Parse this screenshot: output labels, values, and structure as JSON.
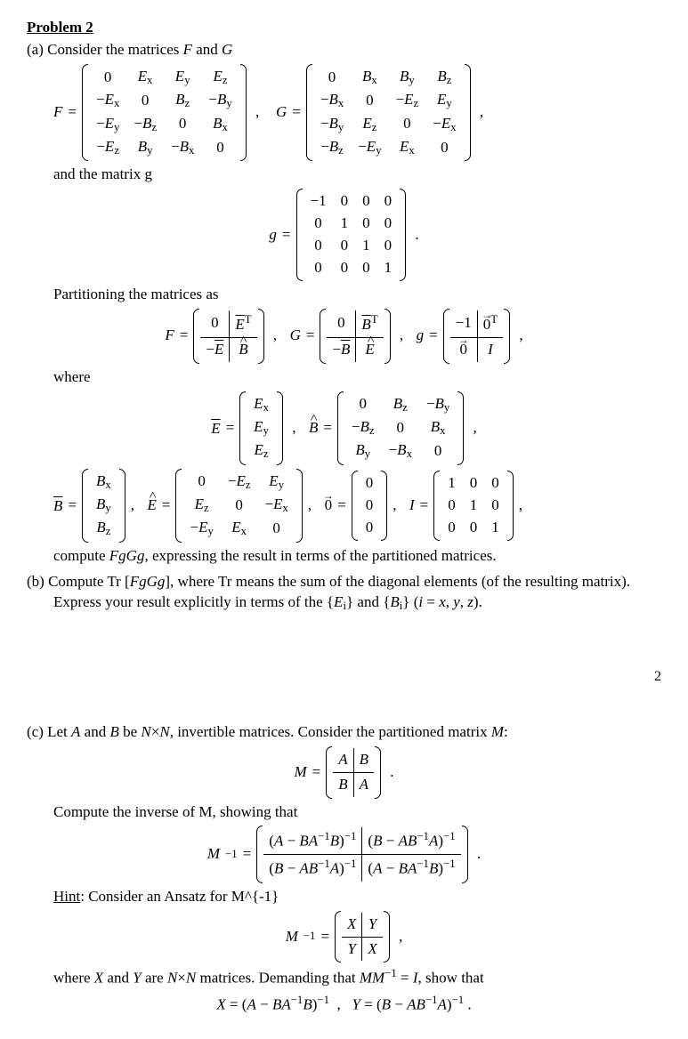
{
  "title": "Problem 2",
  "partA": {
    "label": "(a) Consider the matrices",
    "FandG": "F and G",
    "and_matrix_g": "and the matrix g",
    "partitioning": "Partitioning the matrices as",
    "where": "where",
    "compute": "compute FgGg, expressing the result in terms of the partitioned matrices.",
    "F_eq": "F =",
    "G_eq": "G =",
    "g_eq": "g =",
    "Ehat_eq": "E",
    "Bhat_eq": "B",
    "Ebar_eq": "E",
    "Bbar_eq": "B",
    "Evec_label": "E",
    "Bvec_label": "B",
    "Iden_label": "I =",
    "zero_label": "0",
    "F_matrix": [
      [
        "0",
        "E_x",
        "E_y",
        "E_z"
      ],
      [
        "−E_x",
        "0",
        "B_z",
        "−B_y"
      ],
      [
        "−E_y",
        "−B_z",
        "0",
        "B_x"
      ],
      [
        "−E_z",
        "B_y",
        "−B_x",
        "0"
      ]
    ],
    "G_matrix": [
      [
        "0",
        "B_x",
        "B_y",
        "B_z"
      ],
      [
        "−B_x",
        "0",
        "−E_z",
        "E_y"
      ],
      [
        "−B_y",
        "E_z",
        "0",
        "−E_x"
      ],
      [
        "−B_z",
        "−E_y",
        "E_x",
        "0"
      ]
    ],
    "g_matrix": [
      [
        "−1",
        "0",
        "0",
        "0"
      ],
      [
        "0",
        "1",
        "0",
        "0"
      ],
      [
        "0",
        "0",
        "1",
        "0"
      ],
      [
        "0",
        "0",
        "0",
        "1"
      ]
    ],
    "F_part": [
      [
        "0",
        "E^T"
      ],
      [
        "−E",
        "B"
      ]
    ],
    "G_part": [
      [
        "0",
        "B^T"
      ],
      [
        "−B",
        "E"
      ]
    ],
    "g_part": [
      [
        "−1",
        "0^T"
      ],
      [
        "0",
        "I"
      ]
    ],
    "E_vec": [
      "E_x",
      "E_y",
      "E_z"
    ],
    "Bhat_matrix": [
      [
        "0",
        "B_z",
        "−B_y"
      ],
      [
        "−B_z",
        "0",
        "B_x"
      ],
      [
        "B_y",
        "−B_x",
        "0"
      ]
    ],
    "B_vec": [
      "B_x",
      "B_y",
      "B_z"
    ],
    "Ehat_matrix": [
      [
        "0",
        "−E_z",
        "E_y"
      ],
      [
        "E_z",
        "0",
        "−E_x"
      ],
      [
        "−E_y",
        "E_x",
        "0"
      ]
    ],
    "zero_vec": [
      "0",
      "0",
      "0"
    ],
    "I_matrix": [
      [
        "1",
        "0",
        "0"
      ],
      [
        "0",
        "1",
        "0"
      ],
      [
        "0",
        "0",
        "1"
      ]
    ],
    "punct_comma": ",",
    "punct_period": "."
  },
  "partB": {
    "label": "(b) Compute Tr [FgGg], where Tr means the sum of the diagonal elements (of the resulting matrix).",
    "express": "Express your result explicitly in terms of the {E_i} and {B_i} (i = x, y, z)."
  },
  "page_number": "2",
  "partC": {
    "label": "(c) Let A and B be N×N, invertible matrices. Consider the partitioned matrix M:",
    "M_eq": "M =",
    "Minv_eq": "M^{-1} =",
    "M_part": [
      [
        "A",
        "B"
      ],
      [
        "B",
        "A"
      ]
    ],
    "compute_inverse": "Compute the inverse of M, showing that",
    "Minv_part": [
      [
        "(A − BA^{-1}B)^{-1}",
        "(B − AB^{-1}A)^{-1}"
      ],
      [
        "(B − AB^{-1}A)^{-1}",
        "(A − BA^{-1}B)^{-1}"
      ]
    ],
    "hint_label": "Hint",
    "hint_text": ": Consider an Ansatz for M^{-1}",
    "Minv_ansatz": [
      [
        "X",
        "Y"
      ],
      [
        "Y",
        "X"
      ]
    ],
    "demand_text": "where X and Y are N×N matrices. Demanding that MM^{-1} = I, show that",
    "X_result": "X = (A − BA^{-1}B)^{-1}",
    "Y_result": "Y = (B − AB^{-1}A)^{-1} .",
    "punct_comma": ",",
    "punct_period": "."
  },
  "style": {
    "font_family": "Times New Roman serif",
    "font_size_pt": 12,
    "text_color": "#000000",
    "background_color": "#ffffff",
    "matrix_border_color": "#000000"
  }
}
